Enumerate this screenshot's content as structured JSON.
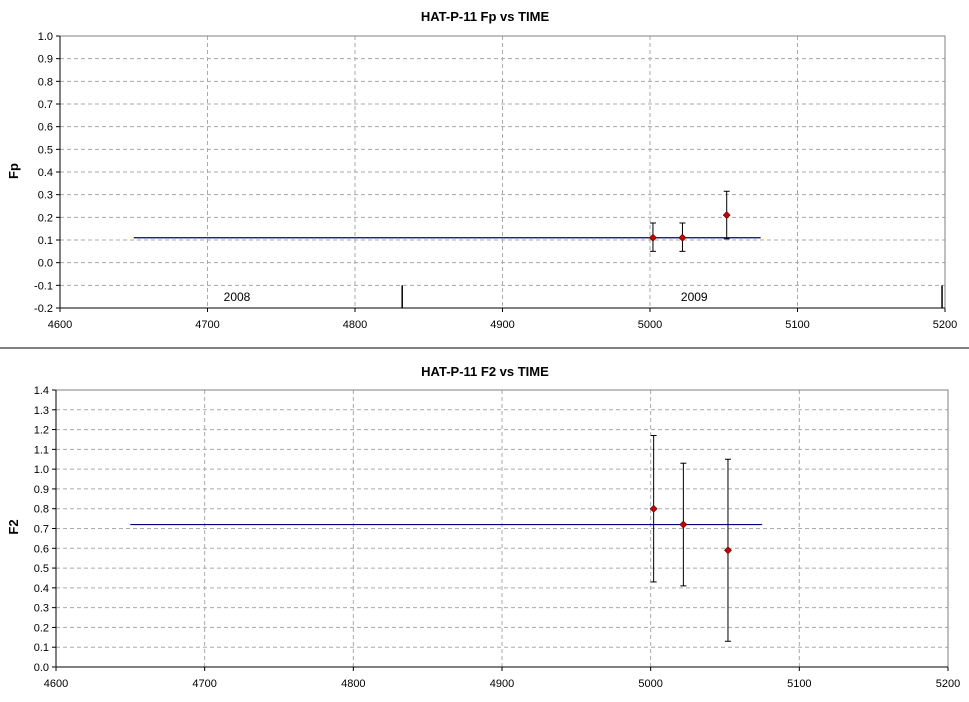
{
  "chart_data": [
    {
      "type": "scatter",
      "title": "HAT-P-11 Fp vs TIME",
      "xlabel": "",
      "ylabel": "Fp",
      "xlim": [
        4600,
        5200
      ],
      "ylim": [
        -0.2,
        1.0
      ],
      "x_ticks": [
        "4600",
        "4700",
        "4800",
        "4900",
        "5000",
        "5100",
        "5200"
      ],
      "y_ticks": [
        "-0.2",
        "-0.1",
        "0.0",
        "0.1",
        "0.2",
        "0.3",
        "0.4",
        "0.5",
        "0.6",
        "0.7",
        "0.8",
        "0.9",
        "1.0"
      ],
      "grid": true,
      "points": [
        {
          "x": 5002,
          "y": 0.11,
          "err_low": 0.05,
          "err_high": 0.175
        },
        {
          "x": 5022,
          "y": 0.11,
          "err_low": 0.05,
          "err_high": 0.175
        },
        {
          "x": 5052,
          "y": 0.21,
          "err_low": 0.105,
          "err_high": 0.315
        }
      ],
      "reference_line": {
        "x_start": 4650,
        "x_end": 5075,
        "y": 0.11
      },
      "year_markers": [
        {
          "label": "2008",
          "x": 4720
        },
        {
          "label": "2009",
          "x": 5030
        }
      ],
      "year_boundaries": [
        4832,
        5198
      ],
      "colors": {
        "point": "#cc0000",
        "line": "#00007f",
        "error_bar": "#000000",
        "grid": "#aaaaaa"
      }
    },
    {
      "type": "scatter",
      "title": "HAT-P-11 F2 vs TIME",
      "xlabel": "",
      "ylabel": "F2",
      "xlim": [
        4600,
        5200
      ],
      "ylim": [
        0.0,
        1.4
      ],
      "x_ticks": [
        "4600",
        "4700",
        "4800",
        "4900",
        "5000",
        "5100",
        "5200"
      ],
      "y_ticks": [
        "0.0",
        "0.1",
        "0.2",
        "0.3",
        "0.4",
        "0.5",
        "0.6",
        "0.7",
        "0.8",
        "0.9",
        "1.0",
        "1.1",
        "1.2",
        "1.3",
        "1.4"
      ],
      "grid": true,
      "points": [
        {
          "x": 5002,
          "y": 0.8,
          "err_low": 0.43,
          "err_high": 1.17
        },
        {
          "x": 5022,
          "y": 0.72,
          "err_low": 0.41,
          "err_high": 1.03
        },
        {
          "x": 5052,
          "y": 0.59,
          "err_low": 0.13,
          "err_high": 1.05
        }
      ],
      "reference_line": {
        "x_start": 4650,
        "x_end": 5075,
        "y": 0.72
      },
      "colors": {
        "point": "#cc0000",
        "line": "#00007f",
        "error_bar": "#000000",
        "grid": "#aaaaaa"
      }
    }
  ]
}
